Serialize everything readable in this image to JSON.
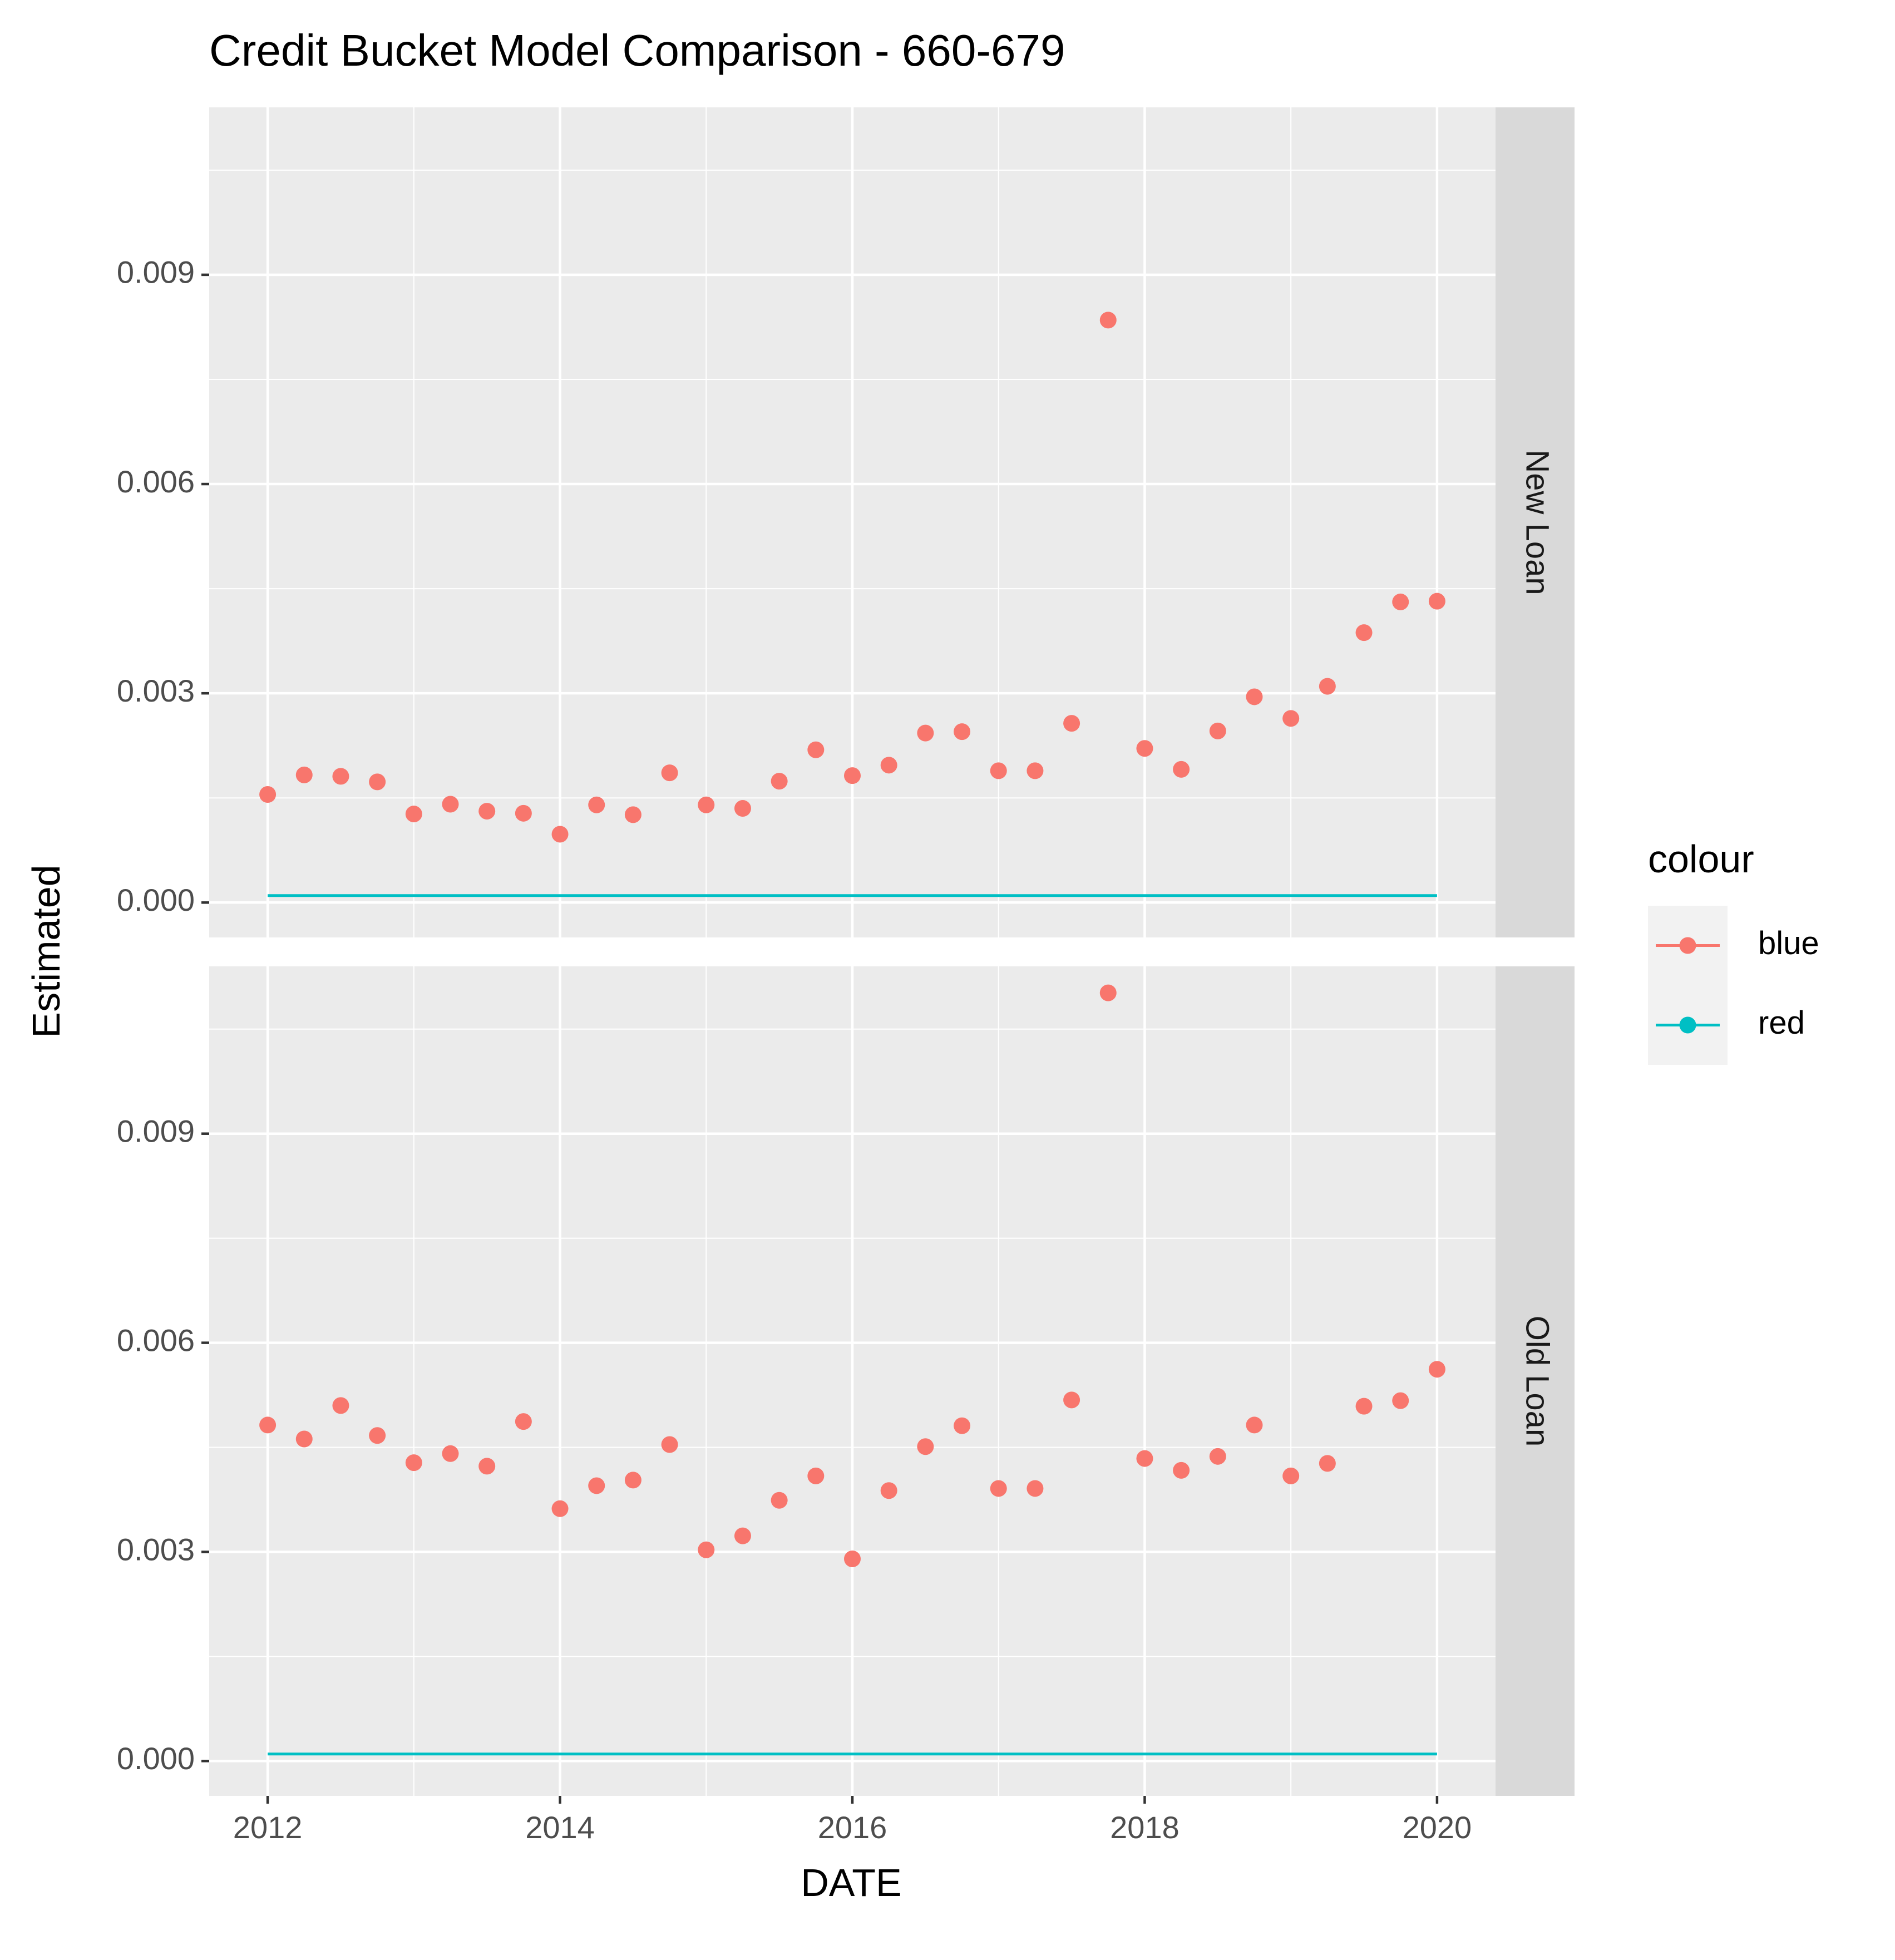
{
  "chart_data": {
    "type": "scatter",
    "title": "Credit Bucket Model Comparison - 660-679",
    "xlabel": "DATE",
    "ylabel": "Estimated",
    "x_ticks": [
      "2012",
      "2014",
      "2016",
      "2018",
      "2020"
    ],
    "x_range": [
      2011.6,
      2020.4
    ],
    "y_ticks": [
      "0.000",
      "0.003",
      "0.006",
      "0.009"
    ],
    "y_range": [
      -0.0005,
      0.0114
    ],
    "grid": true,
    "legend": {
      "title": "colour",
      "position": "right",
      "items": [
        {
          "label": "blue",
          "color": "#F8766D"
        },
        {
          "label": "red",
          "color": "#00BFC4"
        }
      ]
    },
    "x": [
      2012.0,
      2012.25,
      2012.5,
      2012.75,
      2013.0,
      2013.25,
      2013.5,
      2013.75,
      2014.0,
      2014.25,
      2014.5,
      2014.75,
      2015.0,
      2015.25,
      2015.5,
      2015.75,
      2016.0,
      2016.25,
      2016.5,
      2016.75,
      2017.0,
      2017.25,
      2017.5,
      2017.75,
      2018.0,
      2018.25,
      2018.5,
      2018.75,
      2019.0,
      2019.25,
      2019.5,
      2019.75,
      2020.0
    ],
    "panels": [
      {
        "label": "New Loan",
        "series": [
          {
            "name": "blue",
            "kind": "points",
            "color": "#F8766D",
            "values": [
              0.00155,
              0.00183,
              0.00181,
              0.00173,
              0.00127,
              0.00141,
              0.00131,
              0.00128,
              0.00098,
              0.0014,
              0.00126,
              0.00186,
              0.0014,
              0.00135,
              0.00174,
              0.00219,
              0.00182,
              0.00197,
              0.00243,
              0.00245,
              0.00189,
              0.00189,
              0.00257,
              0.00835,
              0.00221,
              0.00191,
              0.00246,
              0.00295,
              0.00264,
              0.0031,
              0.00387,
              0.00431,
              0.00432
            ]
          },
          {
            "name": "red",
            "kind": "line",
            "color": "#00BFC4",
            "values": [
              0.0001,
              0.0001,
              0.0001,
              0.0001,
              0.0001,
              0.0001,
              0.0001,
              0.0001,
              0.0001,
              0.0001,
              0.0001,
              0.0001,
              0.0001,
              0.0001,
              0.0001,
              0.0001,
              0.0001,
              0.0001,
              0.0001,
              0.0001,
              0.0001,
              0.0001,
              0.0001,
              0.0001,
              0.0001,
              0.0001,
              0.0001,
              0.0001,
              0.0001,
              0.0001,
              0.0001,
              0.0001,
              0.0001
            ]
          }
        ]
      },
      {
        "label": "Old Loan",
        "series": [
          {
            "name": "blue",
            "kind": "points",
            "color": "#F8766D",
            "values": [
              0.00482,
              0.00462,
              0.0051,
              0.00467,
              0.00428,
              0.00441,
              0.00423,
              0.00487,
              0.00362,
              0.00395,
              0.00403,
              0.00454,
              0.00303,
              0.00323,
              0.00374,
              0.00409,
              0.0029,
              0.00388,
              0.00451,
              0.00481,
              0.00391,
              0.00391,
              0.00518,
              0.01102,
              0.00434,
              0.00417,
              0.00437,
              0.00482,
              0.00409,
              0.00427,
              0.00509,
              0.00517,
              0.00562
            ]
          },
          {
            "name": "red",
            "kind": "line",
            "color": "#00BFC4",
            "values": [
              0.0001,
              0.0001,
              0.0001,
              0.0001,
              0.0001,
              0.0001,
              0.0001,
              0.0001,
              0.0001,
              0.0001,
              0.0001,
              0.0001,
              0.0001,
              0.0001,
              0.0001,
              0.0001,
              0.0001,
              0.0001,
              0.0001,
              0.0001,
              0.0001,
              0.0001,
              0.0001,
              0.0001,
              0.0001,
              0.0001,
              0.0001,
              0.0001,
              0.0001,
              0.0001,
              0.0001,
              0.0001,
              0.0001
            ]
          }
        ]
      }
    ]
  }
}
